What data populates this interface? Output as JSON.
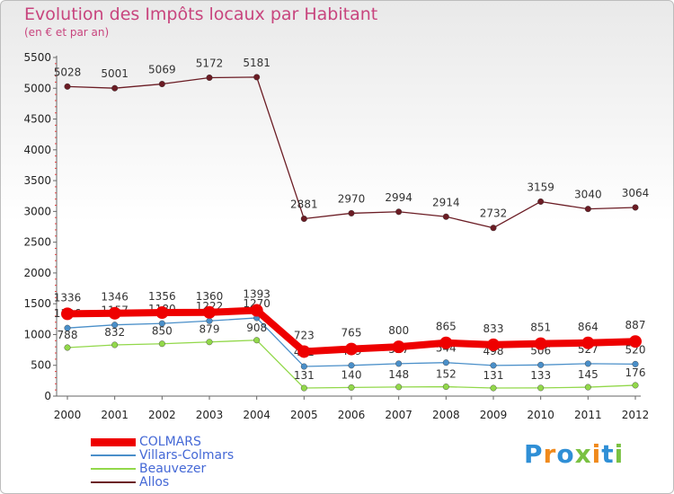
{
  "title": "Evolution des Impôts locaux par Habitant",
  "subtitle": "(en € et par an)",
  "logo": "Proxiti",
  "chart_data": {
    "type": "line",
    "title": "Evolution des Impôts locaux par Habitant",
    "subtitle": "(en € et par an)",
    "xlabel": "",
    "ylabel": "",
    "ylim": [
      0,
      5500
    ],
    "yticks": [
      0,
      500,
      1000,
      1500,
      2000,
      2500,
      3000,
      3500,
      4000,
      4500,
      5000,
      5500
    ],
    "categories": [
      "2000",
      "2001",
      "2002",
      "2003",
      "2004",
      "2005",
      "2006",
      "2007",
      "2008",
      "2009",
      "2010",
      "2011",
      "2012"
    ],
    "series": [
      {
        "name": "Allos",
        "color": "#6b1c24",
        "values": [
          5028,
          5001,
          5069,
          5172,
          5181,
          2881,
          2970,
          2994,
          2914,
          2732,
          3159,
          3040,
          3064
        ]
      },
      {
        "name": "Villars-Colmars",
        "color": "#4a8fc9",
        "values": [
          1106,
          1157,
          1180,
          1222,
          1270,
          481,
          499,
          527,
          544,
          498,
          506,
          527,
          520
        ]
      },
      {
        "name": "Beauvezer",
        "color": "#92d84a",
        "values": [
          788,
          832,
          850,
          879,
          908,
          131,
          140,
          148,
          152,
          131,
          133,
          145,
          176
        ]
      },
      {
        "name": "COLMARS",
        "color": "#ee0000",
        "values": [
          1336,
          1346,
          1356,
          1360,
          1393,
          723,
          765,
          800,
          865,
          833,
          851,
          864,
          887
        ]
      }
    ],
    "legend": [
      "COLMARS",
      "Villars-Colmars",
      "Beauvezer",
      "Allos"
    ],
    "legend_position": "bottom-left"
  }
}
